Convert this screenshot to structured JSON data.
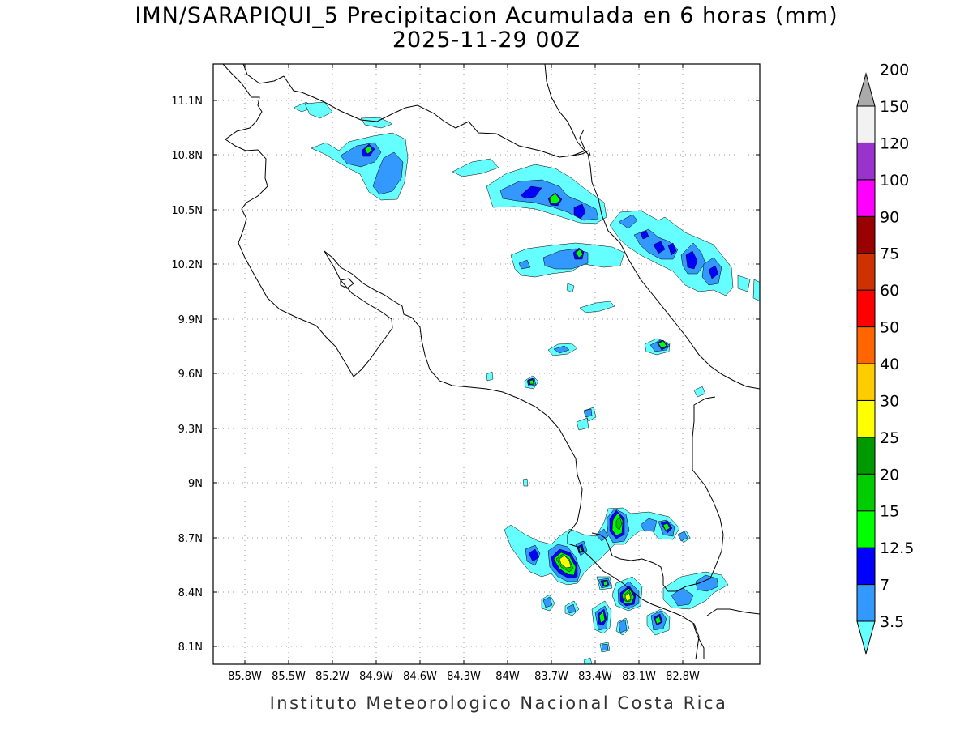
{
  "title": {
    "line1": "IMN/SARAPIQUI_5 Precipitacion Acumulada en 6 horas (mm)",
    "line2": "2025-11-29 00Z"
  },
  "footer": "Instituto Meteorologico Nacional Costa Rica",
  "axes": {
    "lon_labels": [
      "85.8W",
      "85.5W",
      "85.2W",
      "84.9W",
      "84.6W",
      "84.3W",
      "84W",
      "83.7W",
      "83.4W",
      "83.1W",
      "82.8W"
    ],
    "lat_labels": [
      "11.1N",
      "10.8N",
      "10.5N",
      "10.2N",
      "9.9N",
      "9.6N",
      "9.3N",
      "9N",
      "8.7N",
      "8.4N",
      "8.1N"
    ],
    "grid": true
  },
  "colorbar": {
    "labels": [
      "3.5",
      "7",
      "12.5",
      "15",
      "20",
      "25",
      "30",
      "40",
      "50",
      "60",
      "75",
      "90",
      "100",
      "120",
      "150",
      "200"
    ],
    "colors": [
      "#66ffff",
      "#3399ff",
      "#0000ff",
      "#00ff00",
      "#00cc00",
      "#009900",
      "#ffff00",
      "#ffcc00",
      "#ff6600",
      "#ff0000",
      "#cc3300",
      "#990000",
      "#ff00ff",
      "#9933cc",
      "#f2f2f2",
      "#aaaaaa"
    ]
  }
}
